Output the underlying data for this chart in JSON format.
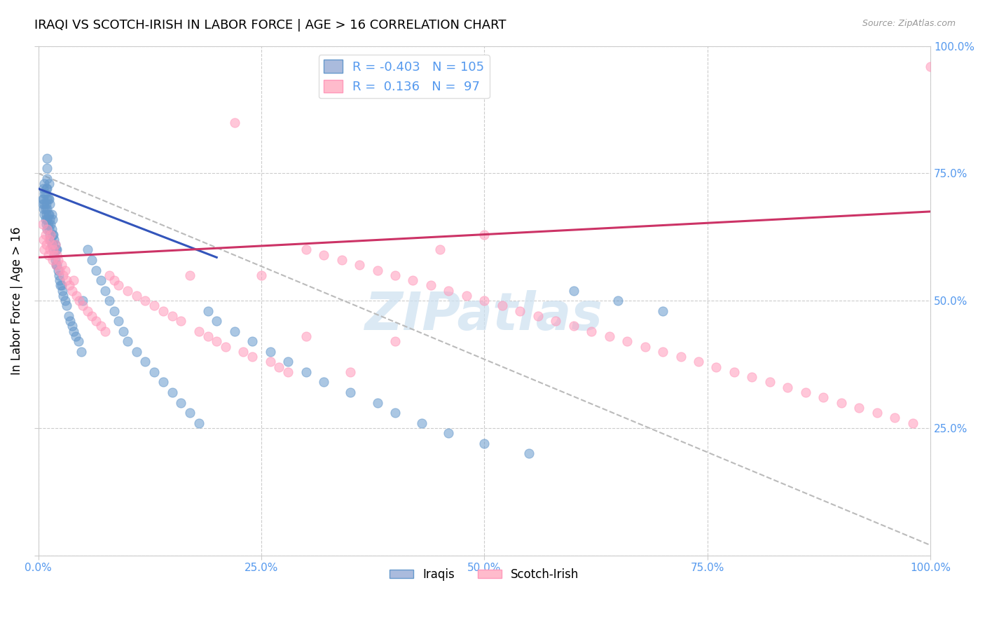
{
  "title": "IRAQI VS SCOTCH-IRISH IN LABOR FORCE | AGE > 16 CORRELATION CHART",
  "source": "Source: ZipAtlas.com",
  "ylabel": "In Labor Force | Age > 16",
  "xlim": [
    0,
    1
  ],
  "ylim": [
    0,
    1
  ],
  "xticks": [
    0,
    0.25,
    0.5,
    0.75,
    1.0
  ],
  "yticks": [
    0,
    0.25,
    0.5,
    0.75,
    1.0
  ],
  "xticklabels": [
    "0.0%",
    "25.0%",
    "50.0%",
    "75.0%",
    "100.0%"
  ],
  "right_yticklabels": [
    "",
    "25.0%",
    "50.0%",
    "75.0%",
    "100.0%"
  ],
  "blue_scatter_x": [
    0.005,
    0.005,
    0.006,
    0.006,
    0.006,
    0.007,
    0.007,
    0.007,
    0.007,
    0.008,
    0.008,
    0.008,
    0.009,
    0.009,
    0.009,
    0.009,
    0.01,
    0.01,
    0.01,
    0.01,
    0.01,
    0.01,
    0.01,
    0.01,
    0.011,
    0.011,
    0.011,
    0.012,
    0.012,
    0.012,
    0.012,
    0.013,
    0.013,
    0.013,
    0.014,
    0.014,
    0.015,
    0.015,
    0.015,
    0.016,
    0.016,
    0.016,
    0.017,
    0.017,
    0.018,
    0.018,
    0.019,
    0.019,
    0.02,
    0.02,
    0.021,
    0.021,
    0.022,
    0.023,
    0.024,
    0.025,
    0.026,
    0.027,
    0.028,
    0.03,
    0.032,
    0.034,
    0.036,
    0.038,
    0.04,
    0.042,
    0.045,
    0.048,
    0.05,
    0.055,
    0.06,
    0.065,
    0.07,
    0.075,
    0.08,
    0.085,
    0.09,
    0.095,
    0.1,
    0.11,
    0.12,
    0.13,
    0.14,
    0.15,
    0.16,
    0.17,
    0.18,
    0.19,
    0.2,
    0.22,
    0.24,
    0.26,
    0.28,
    0.3,
    0.32,
    0.35,
    0.38,
    0.4,
    0.43,
    0.46,
    0.5,
    0.55,
    0.6,
    0.65,
    0.7
  ],
  "blue_scatter_y": [
    0.69,
    0.7,
    0.68,
    0.7,
    0.72,
    0.67,
    0.69,
    0.71,
    0.73,
    0.66,
    0.68,
    0.71,
    0.65,
    0.67,
    0.69,
    0.72,
    0.64,
    0.66,
    0.68,
    0.7,
    0.72,
    0.74,
    0.76,
    0.78,
    0.65,
    0.67,
    0.7,
    0.64,
    0.67,
    0.7,
    0.73,
    0.63,
    0.66,
    0.69,
    0.62,
    0.65,
    0.61,
    0.64,
    0.67,
    0.61,
    0.63,
    0.66,
    0.6,
    0.63,
    0.59,
    0.62,
    0.58,
    0.61,
    0.57,
    0.6,
    0.57,
    0.6,
    0.56,
    0.55,
    0.54,
    0.53,
    0.53,
    0.52,
    0.51,
    0.5,
    0.49,
    0.47,
    0.46,
    0.45,
    0.44,
    0.43,
    0.42,
    0.4,
    0.5,
    0.6,
    0.58,
    0.56,
    0.54,
    0.52,
    0.5,
    0.48,
    0.46,
    0.44,
    0.42,
    0.4,
    0.38,
    0.36,
    0.34,
    0.32,
    0.3,
    0.28,
    0.26,
    0.48,
    0.46,
    0.44,
    0.42,
    0.4,
    0.38,
    0.36,
    0.34,
    0.32,
    0.3,
    0.28,
    0.26,
    0.24,
    0.22,
    0.2,
    0.52,
    0.5,
    0.48
  ],
  "pink_scatter_x": [
    0.005,
    0.006,
    0.007,
    0.008,
    0.009,
    0.01,
    0.011,
    0.012,
    0.013,
    0.014,
    0.015,
    0.016,
    0.017,
    0.018,
    0.019,
    0.02,
    0.021,
    0.022,
    0.024,
    0.026,
    0.028,
    0.03,
    0.032,
    0.035,
    0.038,
    0.04,
    0.043,
    0.046,
    0.05,
    0.055,
    0.06,
    0.065,
    0.07,
    0.075,
    0.08,
    0.085,
    0.09,
    0.1,
    0.11,
    0.12,
    0.13,
    0.14,
    0.15,
    0.16,
    0.17,
    0.18,
    0.19,
    0.2,
    0.21,
    0.22,
    0.23,
    0.24,
    0.25,
    0.26,
    0.27,
    0.28,
    0.3,
    0.32,
    0.34,
    0.36,
    0.38,
    0.4,
    0.42,
    0.44,
    0.46,
    0.48,
    0.5,
    0.52,
    0.54,
    0.56,
    0.58,
    0.6,
    0.62,
    0.64,
    0.66,
    0.68,
    0.7,
    0.72,
    0.74,
    0.76,
    0.78,
    0.8,
    0.82,
    0.84,
    0.86,
    0.88,
    0.9,
    0.92,
    0.94,
    0.96,
    0.98,
    1.0,
    0.3,
    0.35,
    0.4,
    0.45,
    0.5
  ],
  "pink_scatter_y": [
    0.65,
    0.62,
    0.6,
    0.63,
    0.61,
    0.64,
    0.59,
    0.62,
    0.6,
    0.63,
    0.61,
    0.58,
    0.6,
    0.59,
    0.61,
    0.57,
    0.59,
    0.58,
    0.56,
    0.57,
    0.55,
    0.56,
    0.54,
    0.53,
    0.52,
    0.54,
    0.51,
    0.5,
    0.49,
    0.48,
    0.47,
    0.46,
    0.45,
    0.44,
    0.55,
    0.54,
    0.53,
    0.52,
    0.51,
    0.5,
    0.49,
    0.48,
    0.47,
    0.46,
    0.55,
    0.44,
    0.43,
    0.42,
    0.41,
    0.85,
    0.4,
    0.39,
    0.55,
    0.38,
    0.37,
    0.36,
    0.6,
    0.59,
    0.58,
    0.57,
    0.56,
    0.55,
    0.54,
    0.53,
    0.52,
    0.51,
    0.5,
    0.49,
    0.48,
    0.47,
    0.46,
    0.45,
    0.44,
    0.43,
    0.42,
    0.41,
    0.4,
    0.39,
    0.38,
    0.37,
    0.36,
    0.35,
    0.34,
    0.33,
    0.32,
    0.31,
    0.3,
    0.29,
    0.28,
    0.27,
    0.26,
    0.96,
    0.43,
    0.36,
    0.42,
    0.6,
    0.63
  ],
  "blue_trendline": [
    0.0,
    0.72,
    0.2,
    0.585
  ],
  "pink_trendline": [
    0.0,
    0.585,
    1.0,
    0.675
  ],
  "dashed_line": [
    0.0,
    0.75,
    1.0,
    0.02
  ],
  "blue_color": "#6699cc",
  "pink_color": "#ff99bb",
  "blue_line_color": "#3355bb",
  "pink_line_color": "#cc3366",
  "dash_color": "#bbbbbb",
  "tick_color": "#5599ee",
  "watermark": "ZIPatlas",
  "watermark_color": "#cce0f0",
  "background_color": "#ffffff",
  "grid_color": "#cccccc",
  "title_fontsize": 13,
  "axis_label_fontsize": 12,
  "tick_fontsize": 11
}
